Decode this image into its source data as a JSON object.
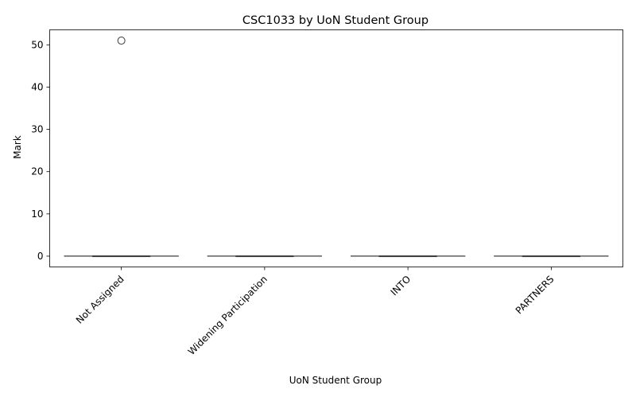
{
  "chart_data": {
    "type": "box",
    "title": "CSC1033 by UoN Student Group",
    "xlabel": "UoN Student Group",
    "ylabel": "Mark",
    "ylim": [
      -2.55,
      53.55
    ],
    "yticks": [
      0,
      10,
      20,
      30,
      40,
      50
    ],
    "ytick_labels": [
      "0",
      "10",
      "20",
      "30",
      "40",
      "50"
    ],
    "categories": [
      "Not Assigned",
      "Widening Participation",
      "INTO",
      "PARTNERS"
    ],
    "boxes": [
      {
        "category": "Not Assigned",
        "min": 0,
        "q1": 0,
        "median": 0,
        "q3": 0,
        "max": 0,
        "outliers": [
          51
        ]
      },
      {
        "category": "Widening Participation",
        "min": 0,
        "q1": 0,
        "median": 0,
        "q3": 0,
        "max": 0,
        "outliers": []
      },
      {
        "category": "INTO",
        "min": 0,
        "q1": 0,
        "median": 0,
        "q3": 0,
        "max": 0,
        "outliers": []
      },
      {
        "category": "PARTNERS",
        "min": 0,
        "q1": 0,
        "median": 0,
        "q3": 0,
        "max": 0,
        "outliers": []
      }
    ],
    "box_color": "#3a3a3a",
    "grid": false,
    "legend": "none"
  }
}
